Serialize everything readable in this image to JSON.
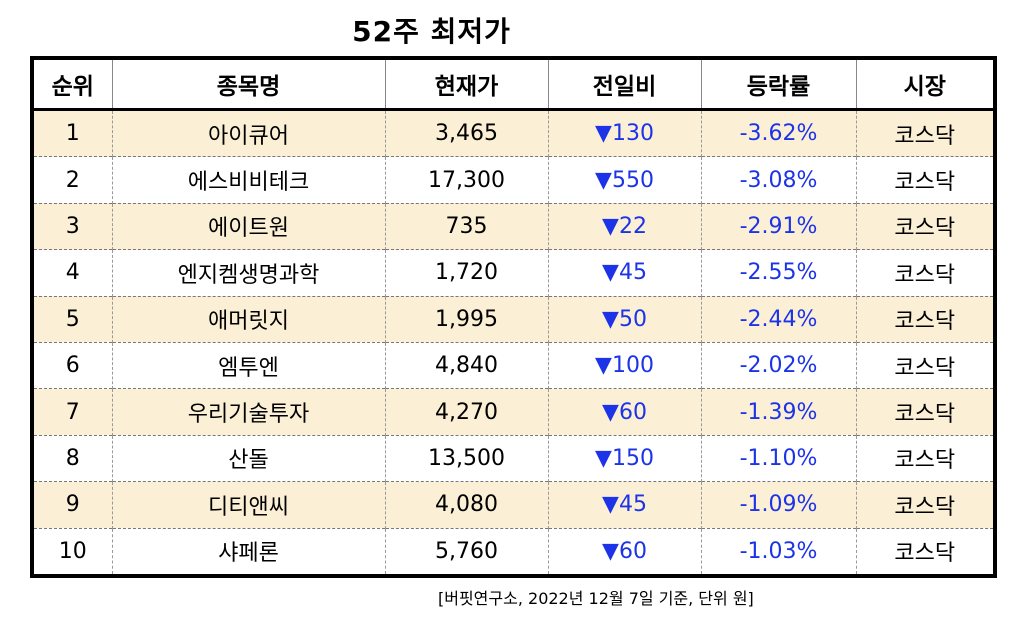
{
  "title": "52주 최저가",
  "headers": [
    "순위",
    "종목명",
    "현재가",
    "전일비",
    "등락률",
    "시장"
  ],
  "arrow_symbol": "▼",
  "rows": [
    {
      "rank": "1",
      "name": "아이큐어",
      "price": "3,465",
      "change": "130",
      "pct": "-3.62%",
      "market": "코스닥"
    },
    {
      "rank": "2",
      "name": "에스비비테크",
      "price": "17,300",
      "change": "550",
      "pct": "-3.08%",
      "market": "코스닥"
    },
    {
      "rank": "3",
      "name": "에이트원",
      "price": "735",
      "change": "22",
      "pct": "-2.91%",
      "market": "코스닥"
    },
    {
      "rank": "4",
      "name": "엔지켐생명과학",
      "price": "1,720",
      "change": "45",
      "pct": "-2.55%",
      "market": "코스닥"
    },
    {
      "rank": "5",
      "name": "애머릿지",
      "price": "1,995",
      "change": "50",
      "pct": "-2.44%",
      "market": "코스닥"
    },
    {
      "rank": "6",
      "name": "엠투엔",
      "price": "4,840",
      "change": "100",
      "pct": "-2.02%",
      "market": "코스닥"
    },
    {
      "rank": "7",
      "name": "우리기술투자",
      "price": "4,270",
      "change": "60",
      "pct": "-1.39%",
      "market": "코스닥"
    },
    {
      "rank": "8",
      "name": "산돌",
      "price": "13,500",
      "change": "150",
      "pct": "-1.10%",
      "market": "코스닥"
    },
    {
      "rank": "9",
      "name": "디티앤씨",
      "price": "4,080",
      "change": "45",
      "pct": "-1.09%",
      "market": "코스닥"
    },
    {
      "rank": "10",
      "name": "샤페론",
      "price": "5,760",
      "change": "60",
      "pct": "-1.03%",
      "market": "코스닥"
    }
  ],
  "colors": {
    "row_highlight": "#fbf0d6",
    "down": "#1c33e8"
  },
  "footnote": "[버핏연구소, 2022년 12월 7일 기준, 단위 원]"
}
